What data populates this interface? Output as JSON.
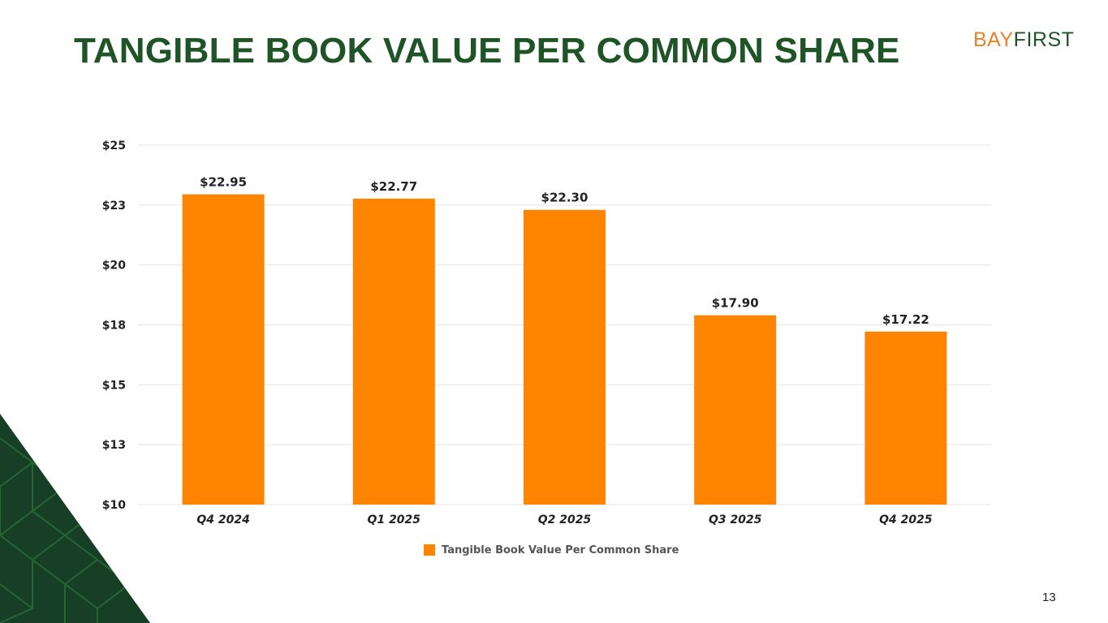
{
  "slide": {
    "title": "TANGIBLE BOOK VALUE PER COMMON SHARE",
    "logo_bay": "BAY",
    "logo_first": "FIRST",
    "page_number": "13"
  },
  "colors": {
    "title_green": "#1f5427",
    "bar_orange": "#ff8500",
    "logo_orange": "#e8822b",
    "corner_green": "#163f26"
  },
  "chart_data": {
    "type": "bar",
    "categories": [
      "Q4 2024",
      "Q1 2025",
      "Q2 2025",
      "Q3 2025",
      "Q4 2025"
    ],
    "series": [
      {
        "name": "Tangible Book Value Per Common Share",
        "values": [
          22.95,
          22.77,
          22.3,
          17.9,
          17.22
        ],
        "data_labels": [
          "$22.95",
          "$22.77",
          "$22.30",
          "$17.90",
          "$17.22"
        ],
        "color": "#ff8500"
      }
    ],
    "ylim": [
      10,
      25
    ],
    "y_ticks": [
      10,
      12.5,
      15,
      17.5,
      20,
      22.5,
      25
    ],
    "y_tick_labels": [
      "$10",
      "$13",
      "$15",
      "$18",
      "$20",
      "$23",
      "$25"
    ],
    "grid": true,
    "legend_position": "bottom"
  }
}
